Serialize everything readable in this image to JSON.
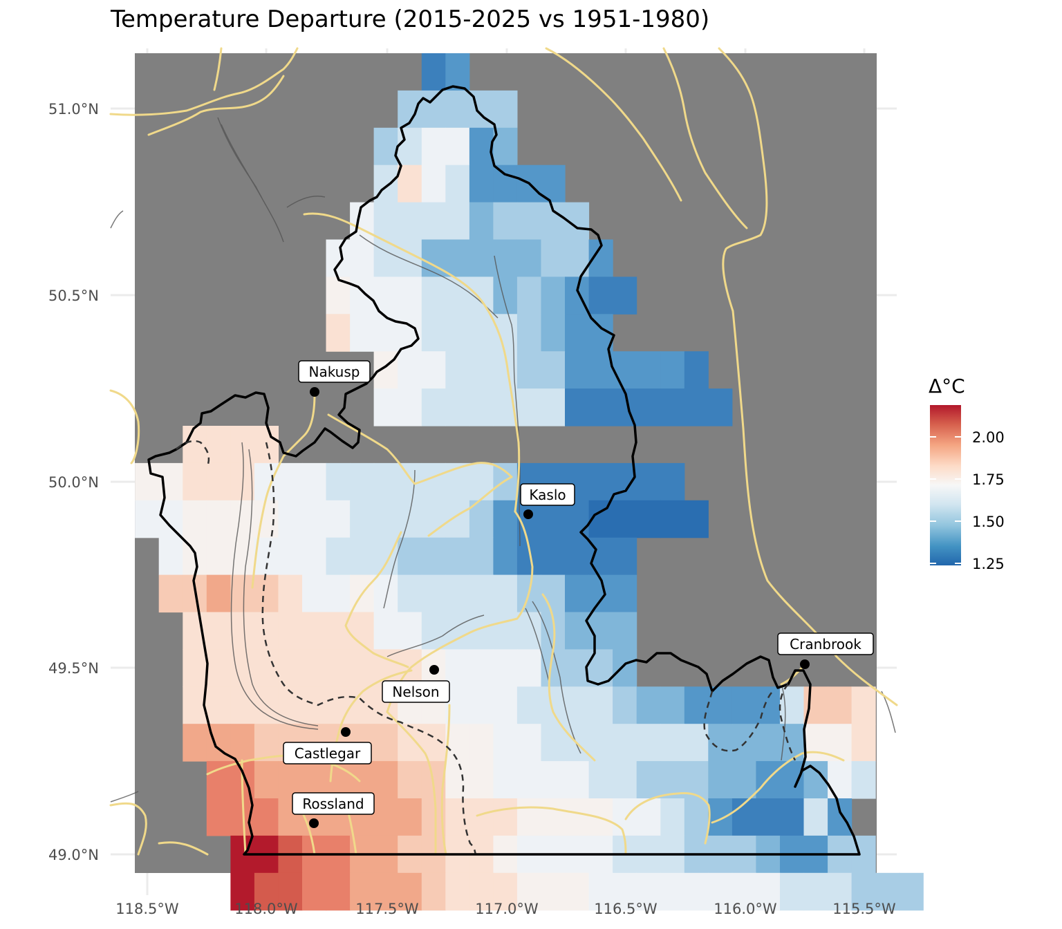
{
  "title": "Temperature Departure (2015-2025 vs 1951-1980)",
  "axes": {
    "x_ticks": [
      "118.5°W",
      "118.0°W",
      "117.5°W",
      "117.0°W",
      "116.5°W",
      "116.0°W",
      "115.5°W"
    ],
    "y_ticks": [
      "51.0°N",
      "50.5°N",
      "50.0°N",
      "49.5°N",
      "49.0°N"
    ]
  },
  "legend": {
    "title": "Δ°C",
    "ticks": [
      "2.00",
      "1.75",
      "1.50",
      "1.25"
    ],
    "colors": [
      "#2166ac",
      "#4393c3",
      "#92c5de",
      "#d1e5f0",
      "#f7f7f7",
      "#fddbc7",
      "#f4a582",
      "#d6604d",
      "#b2182b"
    ]
  },
  "places": [
    {
      "name": "Nakusp"
    },
    {
      "name": "Kaslo"
    },
    {
      "name": "Nelson"
    },
    {
      "name": "Castlegar"
    },
    {
      "name": "Rossland"
    },
    {
      "name": "Cranbrook"
    }
  ],
  "colors": {
    "background_mask": "#808080",
    "roads": "#f0d98a",
    "boundary": "#000000",
    "water": "#555555"
  }
}
